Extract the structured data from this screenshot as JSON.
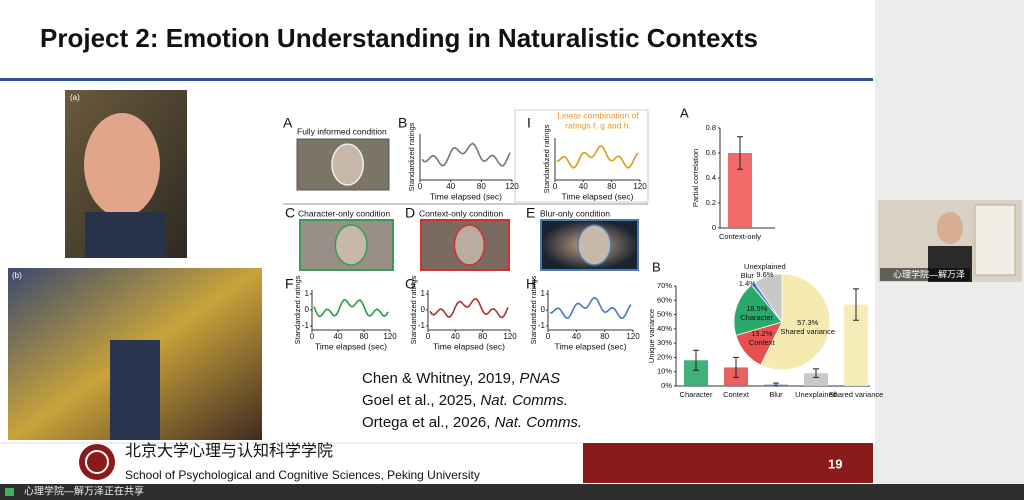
{
  "header": {
    "title": "Project 2: Emotion Understanding in Naturalistic Contexts"
  },
  "photos": {
    "a": "(a)",
    "b": "(b)"
  },
  "figure": {
    "xlabel": "Time elapsed (sec)",
    "ylabel": "Standardized ratings",
    "panels": [
      {
        "letter": "A",
        "caption": "Fully informed condition"
      },
      {
        "letter": "B",
        "xticks": [
          0,
          40,
          80,
          120
        ]
      },
      {
        "letter": "I",
        "caption": [
          "Linear combination of",
          "ratings f, g and h."
        ],
        "xticks": [
          0,
          40,
          80,
          120
        ]
      },
      {
        "letter": "C",
        "caption": "Character-only condition"
      },
      {
        "letter": "D",
        "caption": "Context-only condition"
      },
      {
        "letter": "E",
        "caption": "Blur-only condition"
      },
      {
        "letter": "F",
        "xticks": [
          0,
          40,
          80,
          120
        ],
        "yticks": [
          1,
          0,
          -1
        ]
      },
      {
        "letter": "G",
        "xticks": [
          0,
          40,
          80,
          120
        ],
        "yticks": [
          1,
          0,
          -1
        ]
      },
      {
        "letter": "H",
        "xticks": [
          0,
          40,
          80,
          120
        ],
        "yticks": [
          1,
          0,
          -1
        ]
      }
    ]
  },
  "citations": [
    {
      "text": "Chen & Whitney, 2019, ",
      "journal": "PNAS"
    },
    {
      "text": "Goel et al., 2025, ",
      "journal": "Nat. Comms."
    },
    {
      "text": "Ortega et al., 2026, ",
      "journal": "Nat. Comms."
    }
  ],
  "chart_data": [
    {
      "type": "bar",
      "letter": "A",
      "ylabel": "Partial correlation",
      "categories": [
        "Context-only"
      ],
      "values": [
        0.6
      ],
      "errors": [
        0.13
      ],
      "colors": [
        "#ee5a5a"
      ],
      "ylim": [
        0,
        0.8
      ],
      "yticks": [
        0,
        0.2,
        0.4,
        0.6,
        0.8
      ]
    },
    {
      "type": "bar",
      "letter": "B",
      "ylabel": "Unique variance",
      "categories": [
        "Character",
        "Context",
        "Blur",
        "Unexplained",
        "Shared variance"
      ],
      "values": [
        18,
        13,
        1,
        9,
        57
      ],
      "errors": [
        7,
        7,
        1,
        3,
        11
      ],
      "colors": [
        "#2aaa6a",
        "#e85050",
        "#5a86c8",
        "#c4c4c4",
        "#f5eab0"
      ],
      "ylim": [
        0,
        70
      ],
      "yticks": [
        {
          "value": 0,
          "label": "0%"
        },
        {
          "value": 10,
          "label": "10%"
        },
        {
          "value": 20,
          "label": "20%"
        },
        {
          "value": 30,
          "label": "30%"
        },
        {
          "value": 40,
          "label": "40%"
        },
        {
          "value": 50,
          "label": "50%"
        },
        {
          "value": 60,
          "label": "60%"
        },
        {
          "value": 70,
          "label": "70%"
        }
      ]
    },
    {
      "type": "pie",
      "categories": [
        "Shared variance",
        "Context",
        "Character",
        "Blur",
        "Unexplained"
      ],
      "values": [
        57.3,
        13.2,
        18.5,
        1.4,
        9.6
      ],
      "value_labels": [
        "57.3%",
        "13.2%",
        "18.5%",
        "1.4%",
        "9.6%"
      ],
      "colors": [
        "#f5eab0",
        "#e85050",
        "#2aaa6a",
        "#5a86c8",
        "#c8c8c8"
      ]
    }
  ],
  "footer": {
    "school_cn": "北京大学心理与认知科学学院",
    "school_en": "School of Psychological and Cognitive Sciences, Peking University",
    "page": "19"
  },
  "video": {
    "name": "心理学院—解万泽"
  },
  "status": {
    "text": "心理学院—解万泽正在共享"
  }
}
